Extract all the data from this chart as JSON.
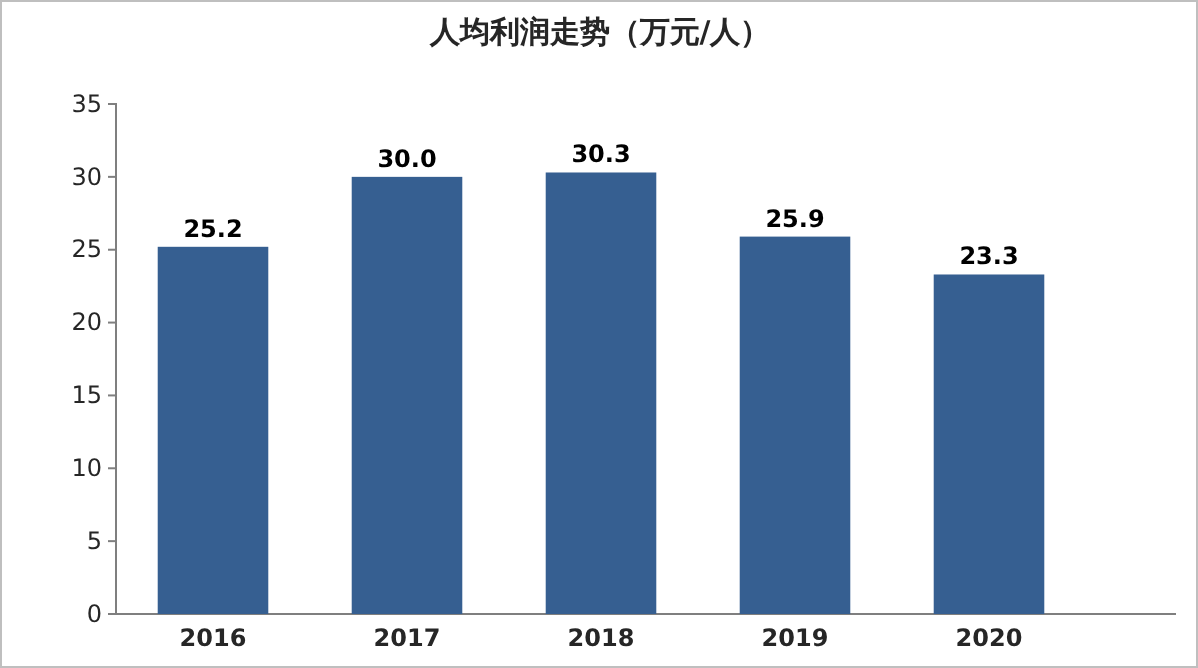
{
  "chart_data": {
    "type": "bar",
    "title": "人均利润走势（万元/人）",
    "categories": [
      "2016",
      "2017",
      "2018",
      "2019",
      "2020"
    ],
    "values": [
      25.2,
      30.0,
      30.3,
      25.9,
      23.3
    ],
    "value_labels": [
      "25.2",
      "30.0",
      "30.3",
      "25.9",
      "23.3"
    ],
    "color": "#365f91",
    "ylim": [
      0,
      35
    ],
    "yticks": [
      0,
      5,
      10,
      15,
      20,
      25,
      30,
      35
    ],
    "grid": false
  }
}
